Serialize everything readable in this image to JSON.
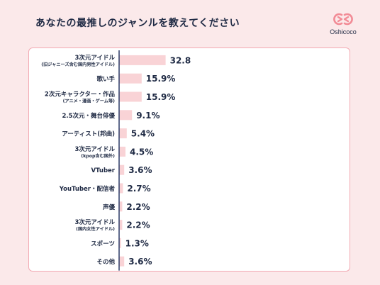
{
  "header": {
    "title": "あなたの最推しのジャンルを教えてください",
    "brand": "Oshicoco"
  },
  "colors": {
    "background": "#fbe9ea",
    "bar": "#f9d3d6",
    "axis": "#2b3a67",
    "text": "#1f2a44",
    "accent": "#f28b96",
    "card_border": "#f2a9b2"
  },
  "chart_data": {
    "type": "bar",
    "orientation": "horizontal",
    "categories": [
      [
        "3次元アイドル",
        "(旧ジャニーズ含む国内男性アイドル)"
      ],
      [
        "歌い手"
      ],
      [
        "2次元キャラクター・作品",
        "(アニメ・漫画・ゲーム等)"
      ],
      [
        "2.5次元・舞台俳優"
      ],
      [
        "アーティスト(邦曲)"
      ],
      [
        "3次元アイドル",
        "(kpop含む国外)"
      ],
      [
        "VTuber"
      ],
      [
        "YouTuber・配信者"
      ],
      [
        "声優"
      ],
      [
        "3次元アイドル",
        "(国内女性アイドル)"
      ],
      [
        "スポーツ"
      ],
      [
        "その他"
      ]
    ],
    "values": [
      32.8,
      15.9,
      15.9,
      9.1,
      5.4,
      4.5,
      3.6,
      2.7,
      2.2,
      2.2,
      1.3,
      3.6
    ],
    "value_labels": [
      "32.8",
      "15.9%",
      "15.9%",
      "9.1%",
      "5.4%",
      "4.5%",
      "3.6%",
      "2.7%",
      "2.2%",
      "2.2%",
      "1.3%",
      "3.6%"
    ],
    "xlim": [
      0,
      40
    ]
  }
}
